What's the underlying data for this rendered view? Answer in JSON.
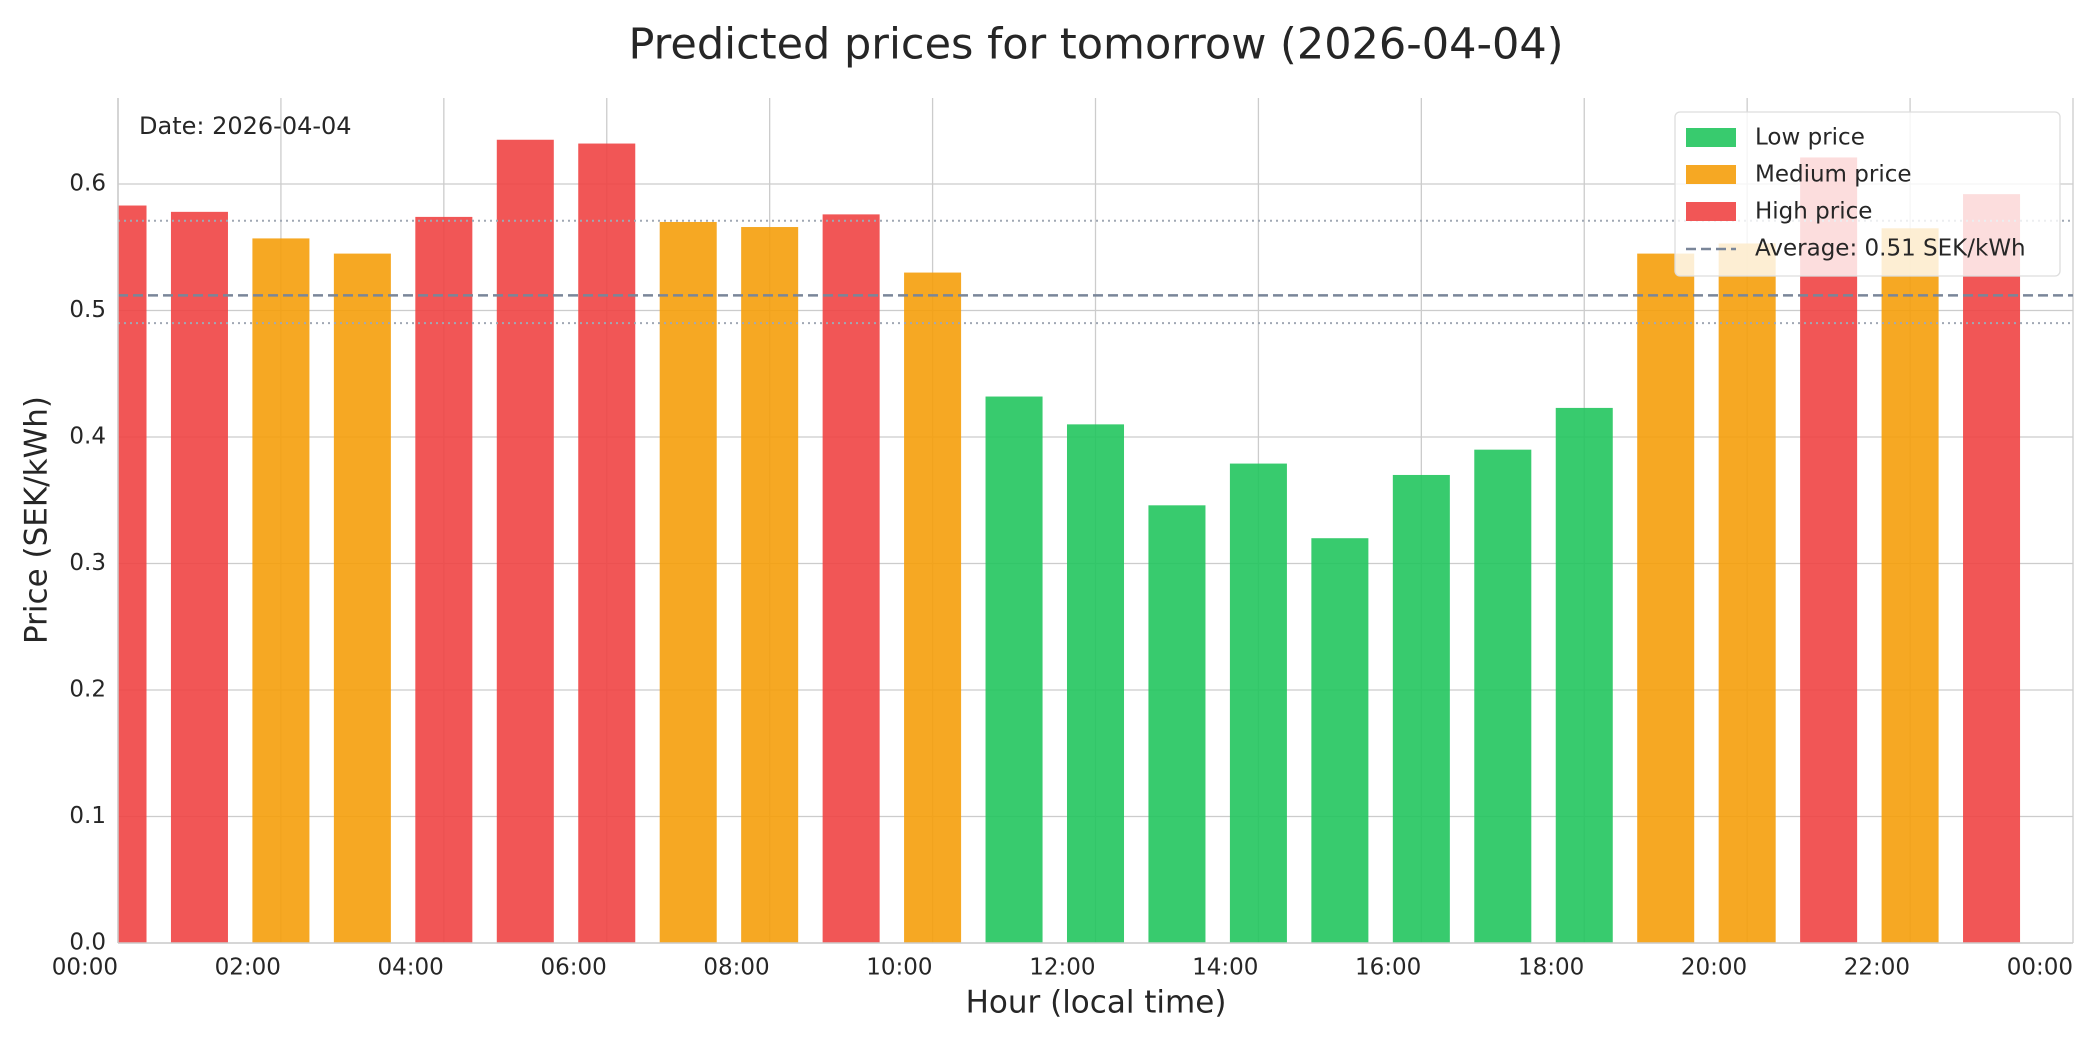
{
  "chart_data": {
    "type": "bar",
    "title": "Predicted prices for tomorrow (2026-04-04)",
    "xlabel": "Hour (local time)",
    "ylabel": "Price (SEK/kWh)",
    "annotation": "Date: 2026-04-04",
    "x": [
      0,
      1,
      2,
      3,
      4,
      5,
      6,
      7,
      8,
      9,
      10,
      11,
      12,
      13,
      14,
      15,
      16,
      17,
      18,
      19,
      20,
      21,
      22,
      23
    ],
    "series": [
      {
        "name": "Low price",
        "color": "#22c55e",
        "values": [
          null,
          null,
          null,
          null,
          null,
          null,
          null,
          null,
          null,
          null,
          null,
          0.432,
          0.41,
          0.346,
          0.379,
          0.32,
          0.37,
          0.39,
          0.423,
          null,
          null,
          null,
          null,
          null
        ]
      },
      {
        "name": "Medium price",
        "color": "#f59e0b",
        "values": [
          null,
          null,
          0.557,
          0.545,
          null,
          null,
          null,
          0.57,
          0.566,
          null,
          0.53,
          null,
          null,
          null,
          null,
          null,
          null,
          null,
          null,
          0.545,
          0.553,
          null,
          0.565,
          null
        ]
      },
      {
        "name": "High price",
        "color": "#ef4444",
        "values": [
          0.583,
          0.578,
          null,
          null,
          0.574,
          0.635,
          0.632,
          null,
          null,
          0.576,
          null,
          null,
          null,
          null,
          null,
          null,
          null,
          null,
          null,
          null,
          null,
          0.621,
          null,
          0.592
        ]
      }
    ],
    "average": {
      "value": 0.512,
      "label": "Average: 0.51 SEK/kWh",
      "color": "#7a8699"
    },
    "threshold_lines": [
      0.571,
      0.49
    ],
    "xlim": [
      0,
      24
    ],
    "xticks": [
      {
        "value": 0,
        "label": "00:00"
      },
      {
        "value": 2,
        "label": "02:00"
      },
      {
        "value": 4,
        "label": "04:00"
      },
      {
        "value": 6,
        "label": "06:00"
      },
      {
        "value": 8,
        "label": "08:00"
      },
      {
        "value": 10,
        "label": "10:00"
      },
      {
        "value": 12,
        "label": "12:00"
      },
      {
        "value": 14,
        "label": "14:00"
      },
      {
        "value": 16,
        "label": "16:00"
      },
      {
        "value": 18,
        "label": "18:00"
      },
      {
        "value": 20,
        "label": "20:00"
      },
      {
        "value": 22,
        "label": "22:00"
      },
      {
        "value": 24,
        "label": "00:00"
      }
    ],
    "ylim": [
      0,
      0.668
    ],
    "yticks": [
      {
        "value": 0,
        "label": "0.0"
      },
      0.1,
      0.2,
      0.3,
      0.4,
      0.5,
      0.6
    ],
    "grid": true,
    "legend": "upper right"
  }
}
